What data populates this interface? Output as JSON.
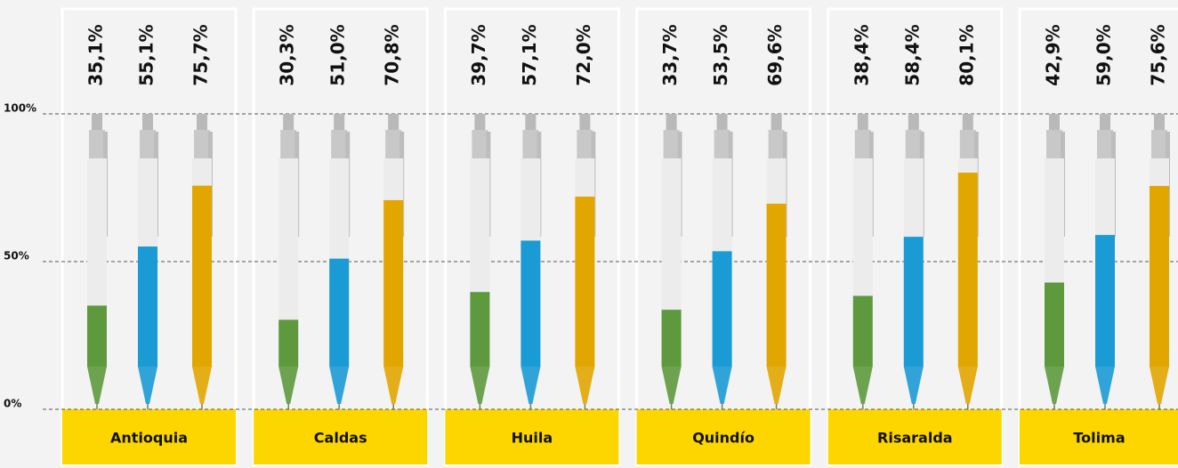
{
  "chart_data": {
    "type": "pen-bar",
    "categories": [
      "Antioquia",
      "Caldas",
      "Huila",
      "Quindío",
      "Risaralda",
      "Tolima"
    ],
    "series": [
      {
        "color": "#5e9a3d",
        "values": [
          35.1,
          30.3,
          39.7,
          33.7,
          38.4,
          42.9
        ],
        "value_labels": [
          "35,1%",
          "30,3%",
          "39,7%",
          "33,7%",
          "38,4%",
          "42,9%"
        ]
      },
      {
        "color": "#1b9bd5",
        "values": [
          55.1,
          51.0,
          57.1,
          53.5,
          58.4,
          59.0
        ],
        "value_labels": [
          "55,1%",
          "51,0%",
          "57,1%",
          "53,5%",
          "58,4%",
          "59,0%"
        ]
      },
      {
        "color": "#e2a600",
        "values": [
          75.7,
          70.8,
          72.0,
          69.6,
          80.1,
          75.6
        ],
        "value_labels": [
          "75,7%",
          "70,8%",
          "72,0%",
          "69,6%",
          "80,1%",
          "75,6%"
        ]
      }
    ],
    "ylim": [
      0,
      100
    ],
    "yticks": [
      {
        "value": 0,
        "label": "0%"
      },
      {
        "value": 50,
        "label": "50%"
      },
      {
        "value": 100,
        "label": "100%"
      }
    ],
    "grid": true
  }
}
